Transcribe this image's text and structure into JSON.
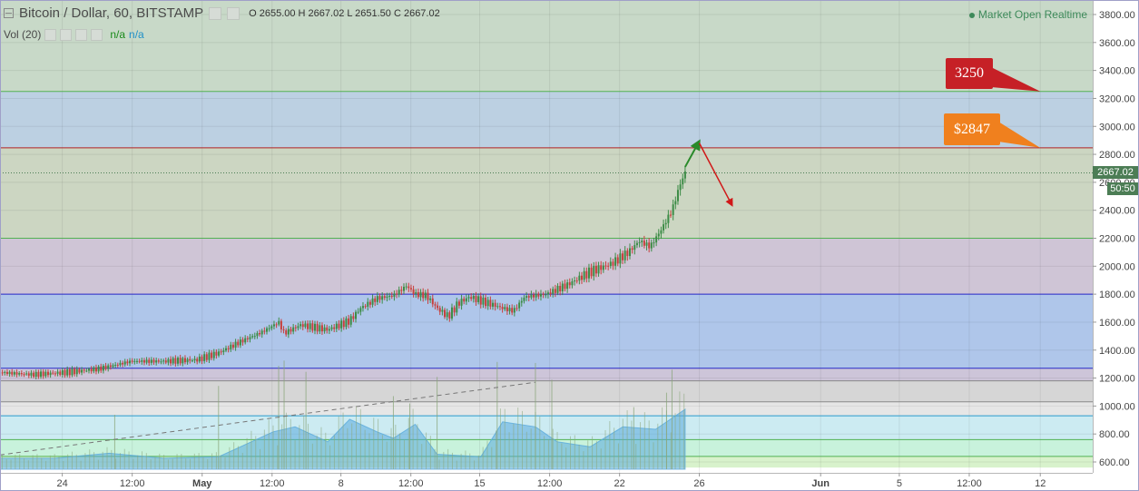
{
  "header": {
    "title": "Bitcoin / Dollar, 60, BITSTAMP",
    "ohlc": "O 2655.00  H 2667.02  L 2651.50  C 2667.02",
    "volume_label": "Vol (20)",
    "volume_value_1": "n/a",
    "volume_value_2": "n/a",
    "market_status": "Market Open",
    "data_mode": "Realtime"
  },
  "annotations": {
    "target_high": "3250",
    "target_mid": "$2847",
    "last_price": "2667.02",
    "countdown": "50:50"
  },
  "colors": {
    "candle_up": "#3c8c46",
    "candle_down": "#c8403c",
    "volume": "#5aaadc",
    "label_red": "#c62026",
    "label_orange": "#f0801e",
    "arrow_green": "#2a8a2a",
    "arrow_red": "#d01818",
    "price_tag": "#4c7d55"
  },
  "chart_data": {
    "type": "candlestick",
    "title": "Bitcoin / Dollar, 60, BITSTAMP",
    "xlabel": "",
    "ylabel": "",
    "y_axis": {
      "range": [
        560,
        3900
      ],
      "ticks": [
        "600.00",
        "800.00",
        "1000.00",
        "1200.00",
        "1400.00",
        "1600.00",
        "1800.00",
        "2000.00",
        "2200.00",
        "2400.00",
        "2600.00",
        "2800.00",
        "3000.00",
        "3200.00",
        "3400.00",
        "3600.00",
        "3800.00"
      ]
    },
    "x_axis": {
      "ticks": [
        {
          "label": "24",
          "pos": 0.057
        },
        {
          "label": "12:00",
          "pos": 0.121
        },
        {
          "label": "May",
          "pos": 0.185
        },
        {
          "label": "12:00",
          "pos": 0.249
        },
        {
          "label": "8",
          "pos": 0.312
        },
        {
          "label": "12:00",
          "pos": 0.376
        },
        {
          "label": "15",
          "pos": 0.439
        },
        {
          "label": "12:00",
          "pos": 0.503
        },
        {
          "label": "22",
          "pos": 0.567
        },
        {
          "label": "26",
          "pos": 0.64
        },
        {
          "label": "Jun",
          "pos": 0.751
        },
        {
          "label": "5",
          "pos": 0.823
        },
        {
          "label": "12:00",
          "pos": 0.887
        },
        {
          "label": "12",
          "pos": 0.952
        }
      ]
    },
    "price_path": [
      [
        0.0,
        1240
      ],
      [
        0.03,
        1225
      ],
      [
        0.06,
        1240
      ],
      [
        0.09,
        1265
      ],
      [
        0.12,
        1320
      ],
      [
        0.15,
        1320
      ],
      [
        0.18,
        1330
      ],
      [
        0.2,
        1380
      ],
      [
        0.22,
        1460
      ],
      [
        0.24,
        1530
      ],
      [
        0.255,
        1600
      ],
      [
        0.26,
        1520
      ],
      [
        0.275,
        1580
      ],
      [
        0.3,
        1545
      ],
      [
        0.32,
        1610
      ],
      [
        0.33,
        1700
      ],
      [
        0.345,
        1770
      ],
      [
        0.36,
        1790
      ],
      [
        0.372,
        1860
      ],
      [
        0.38,
        1800
      ],
      [
        0.39,
        1790
      ],
      [
        0.4,
        1700
      ],
      [
        0.41,
        1640
      ],
      [
        0.42,
        1740
      ],
      [
        0.43,
        1780
      ],
      [
        0.445,
        1740
      ],
      [
        0.46,
        1700
      ],
      [
        0.47,
        1680
      ],
      [
        0.48,
        1780
      ],
      [
        0.5,
        1800
      ],
      [
        0.52,
        1870
      ],
      [
        0.54,
        1960
      ],
      [
        0.56,
        2020
      ],
      [
        0.575,
        2100
      ],
      [
        0.585,
        2180
      ],
      [
        0.595,
        2140
      ],
      [
        0.605,
        2260
      ],
      [
        0.615,
        2400
      ],
      [
        0.623,
        2600
      ],
      [
        0.627,
        2667
      ]
    ],
    "volume_profile": [
      [
        0.0,
        0.22
      ],
      [
        0.05,
        0.22
      ],
      [
        0.1,
        0.32
      ],
      [
        0.15,
        0.22
      ],
      [
        0.2,
        0.25
      ],
      [
        0.25,
        0.75
      ],
      [
        0.27,
        0.85
      ],
      [
        0.3,
        0.55
      ],
      [
        0.32,
        1.0
      ],
      [
        0.345,
        0.75
      ],
      [
        0.36,
        0.62
      ],
      [
        0.38,
        0.9
      ],
      [
        0.4,
        0.3
      ],
      [
        0.44,
        0.25
      ],
      [
        0.46,
        0.95
      ],
      [
        0.49,
        0.85
      ],
      [
        0.51,
        0.55
      ],
      [
        0.54,
        0.45
      ],
      [
        0.57,
        0.85
      ],
      [
        0.6,
        0.8
      ],
      [
        0.627,
        1.2
      ]
    ],
    "volume_spikes": [
      0.105,
      0.2,
      0.255,
      0.26,
      0.28,
      0.36,
      0.375,
      0.4,
      0.455,
      0.49,
      0.505,
      0.58,
      0.61,
      0.615
    ],
    "horizontal_levels": [
      {
        "price": 3250,
        "color": "#52b152"
      },
      {
        "price": 2847,
        "color": "#b22222"
      },
      {
        "price": 2200,
        "color": "#52b152"
      },
      {
        "price": 1800,
        "color": "#2828c8"
      },
      {
        "price": 1270,
        "color": "#2828c8"
      },
      {
        "price": 1180,
        "color": "#888888"
      },
      {
        "price": 1030,
        "color": "#888888"
      },
      {
        "price": 930,
        "color": "#2a9acb"
      },
      {
        "price": 760,
        "color": "#52b152"
      },
      {
        "price": 640,
        "color": "#52b152"
      }
    ],
    "bands": [
      {
        "from": 3250,
        "to": 3900,
        "color": "#c8d9c8"
      },
      {
        "from": 2847,
        "to": 3250,
        "color": "#bcd0e2"
      },
      {
        "from": 2200,
        "to": 2847,
        "color": "#ccd6c2"
      },
      {
        "from": 1800,
        "to": 2200,
        "color": "#cfc5d6"
      },
      {
        "from": 1270,
        "to": 1800,
        "color": "#afc6ea"
      },
      {
        "from": 1180,
        "to": 1270,
        "color": "#cdc5d9"
      },
      {
        "from": 1030,
        "to": 1180,
        "color": "#d6d6d6"
      },
      {
        "from": 930,
        "to": 1030,
        "color": "#e6e6e6"
      },
      {
        "from": 760,
        "to": 930,
        "color": "#ccebf2"
      },
      {
        "from": 640,
        "to": 760,
        "color": "#c8f2dc"
      },
      {
        "from": 560,
        "to": 640,
        "color": "#d8f2cc"
      }
    ],
    "last_price_line": 2667.02,
    "trendline": {
      "from": [
        0.0,
        650
      ],
      "to": [
        0.49,
        1170
      ]
    },
    "projection_up": {
      "from": [
        0.627,
        2710
      ],
      "to": [
        0.64,
        2895
      ]
    },
    "projection_down": {
      "from": [
        0.64,
        2880
      ],
      "to": [
        0.67,
        2435
      ]
    },
    "callout_high": {
      "price": 3250,
      "target_pos": 0.952
    },
    "callout_mid": {
      "price": 2847,
      "target_pos": 0.952
    }
  }
}
